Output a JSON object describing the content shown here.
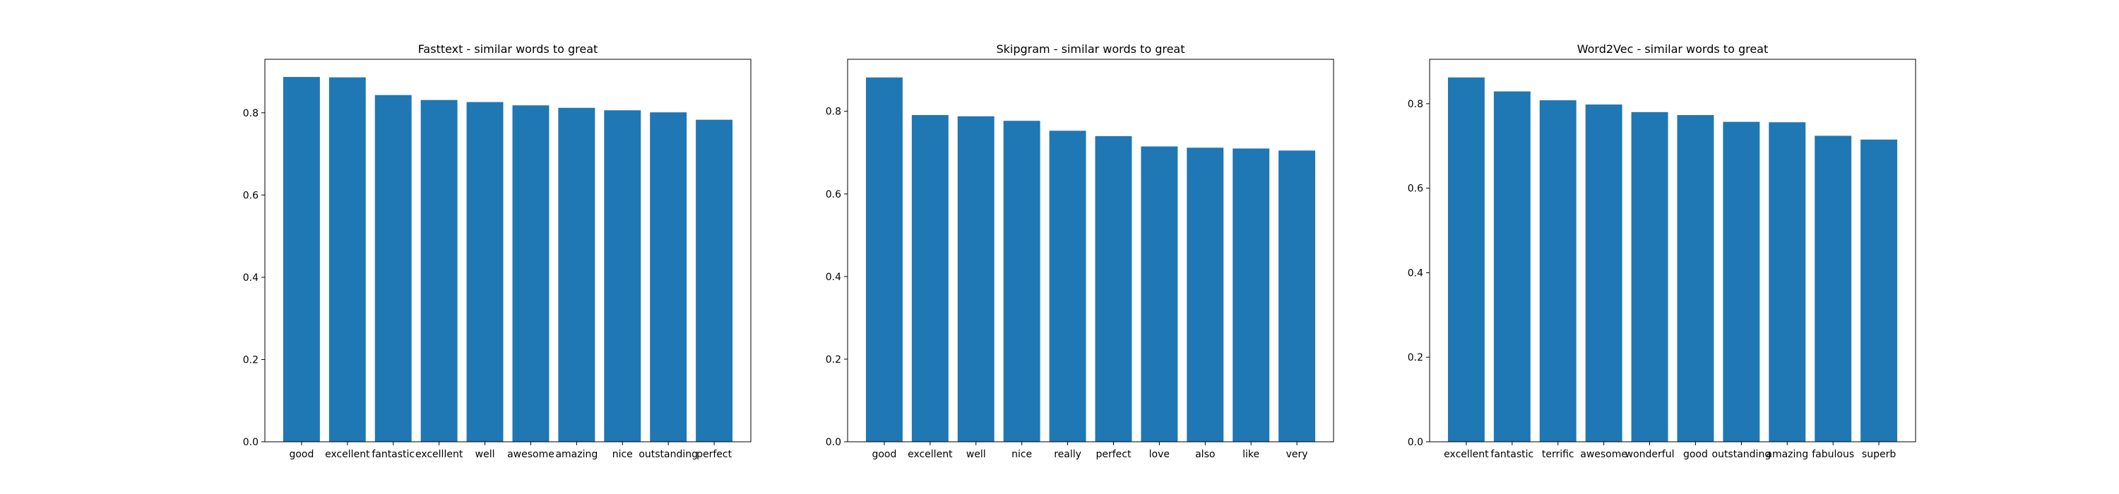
{
  "chart_data": [
    {
      "type": "bar",
      "title": "Fasttext - similar words to great",
      "xlabel": "",
      "ylabel": "",
      "categories": [
        "good",
        "excellent",
        "fantastic",
        "excelllent",
        "well",
        "awesome",
        "amazing",
        "nice",
        "outstanding",
        "perfect"
      ],
      "values": [
        0.887,
        0.886,
        0.843,
        0.831,
        0.826,
        0.818,
        0.812,
        0.806,
        0.801,
        0.783
      ],
      "ylim": [
        0,
        0.93
      ],
      "yticks": [
        "0.0",
        "0.2",
        "0.4",
        "0.6",
        "0.8"
      ],
      "grid": false,
      "color": "#1f77b4"
    },
    {
      "type": "bar",
      "title": "Skipgram - similar words to great",
      "xlabel": "",
      "ylabel": "",
      "categories": [
        "good",
        "excellent",
        "well",
        "nice",
        "really",
        "perfect",
        "love",
        "also",
        "like",
        "very"
      ],
      "values": [
        0.882,
        0.791,
        0.788,
        0.777,
        0.753,
        0.74,
        0.715,
        0.712,
        0.71,
        0.705
      ],
      "ylim": [
        0,
        0.926
      ],
      "yticks": [
        "0.0",
        "0.2",
        "0.4",
        "0.6",
        "0.8"
      ],
      "grid": false,
      "color": "#1f77b4"
    },
    {
      "type": "bar",
      "title": "Word2Vec - similar words to great",
      "xlabel": "",
      "ylabel": "",
      "categories": [
        "excellent",
        "fantastic",
        "terrific",
        "awesome",
        "wonderful",
        "good",
        "outstanding",
        "amazing",
        "fabulous",
        "superb"
      ],
      "values": [
        0.862,
        0.829,
        0.808,
        0.798,
        0.78,
        0.773,
        0.757,
        0.756,
        0.724,
        0.715
      ],
      "ylim": [
        0,
        0.905
      ],
      "yticks": [
        "0.0",
        "0.2",
        "0.4",
        "0.6",
        "0.8"
      ],
      "grid": false,
      "color": "#1f77b4"
    }
  ]
}
